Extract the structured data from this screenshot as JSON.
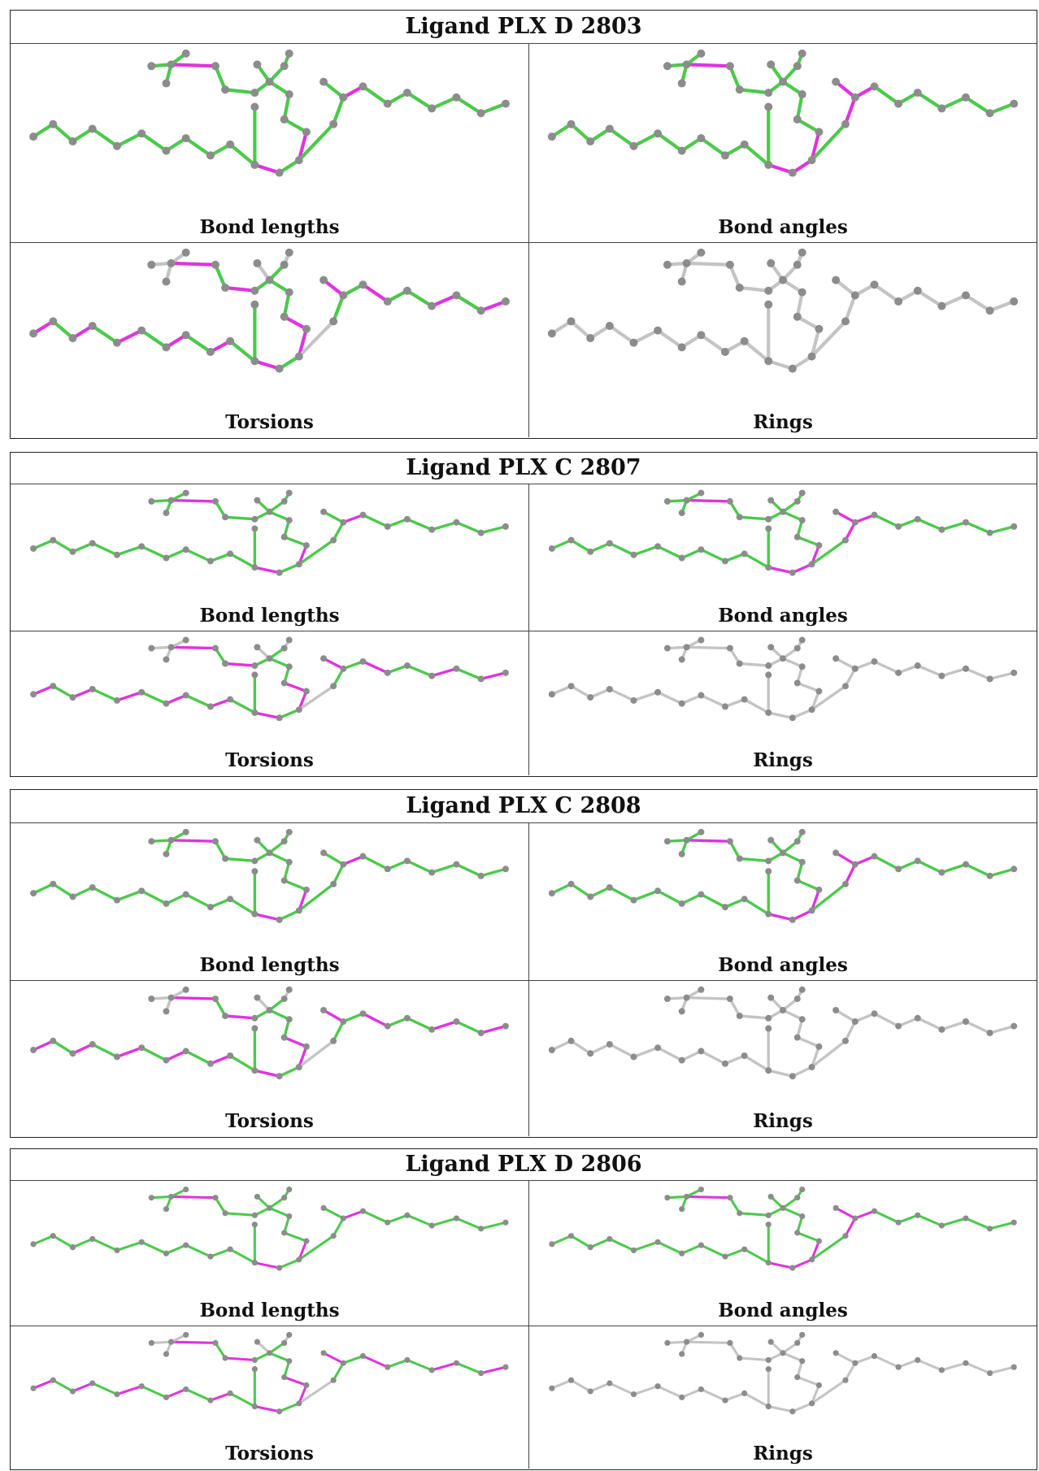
{
  "colors": {
    "ok": "#4cc94c",
    "outlier": "#e033e0",
    "neutral": "#c4c4c4",
    "atom": "#8c8c8c",
    "border": "#222222"
  },
  "blocks": [
    {
      "title": "Ligand PLX D 2803",
      "panels": [
        {
          "caption": "Bond lengths",
          "scheme": "lengths"
        },
        {
          "caption": "Bond angles",
          "scheme": "angles"
        },
        {
          "caption": "Torsions",
          "scheme": "torsions"
        },
        {
          "caption": "Rings",
          "scheme": "rings"
        }
      ]
    },
    {
      "title": "Ligand PLX C 2807",
      "panels": [
        {
          "caption": "Bond lengths",
          "scheme": "lengths"
        },
        {
          "caption": "Bond angles",
          "scheme": "angles"
        },
        {
          "caption": "Torsions",
          "scheme": "torsions"
        },
        {
          "caption": "Rings",
          "scheme": "rings"
        }
      ]
    },
    {
      "title": "Ligand PLX C 2808",
      "panels": [
        {
          "caption": "Bond lengths",
          "scheme": "lengths"
        },
        {
          "caption": "Bond angles",
          "scheme": "angles"
        },
        {
          "caption": "Torsions",
          "scheme": "torsions"
        },
        {
          "caption": "Rings",
          "scheme": "rings"
        }
      ]
    },
    {
      "title": "Ligand PLX D 2806",
      "panels": [
        {
          "caption": "Bond lengths",
          "scheme": "lengths"
        },
        {
          "caption": "Bond angles",
          "scheme": "angles"
        },
        {
          "caption": "Torsions",
          "scheme": "torsions"
        },
        {
          "caption": "Rings",
          "scheme": "rings"
        }
      ]
    }
  ]
}
